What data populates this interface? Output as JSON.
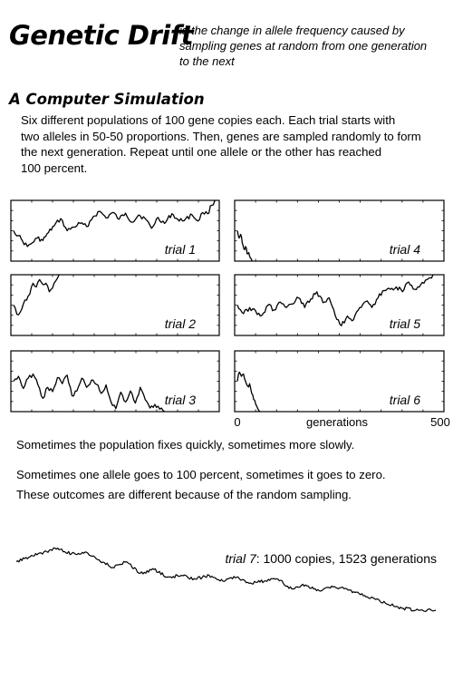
{
  "header": {
    "title": "Genetic Drift",
    "definition_lines": [
      "is the change in allele frequency caused by",
      "sampling genes at random from one generation",
      "to the next"
    ]
  },
  "section": {
    "title": "A Computer Simulation",
    "intro_lines": [
      "Six different populations of 100 gene copies each.  Each trial starts with",
      "two alleles in 50-50 proportions.  Then, genes are sampled randomly to form",
      "the next generation.  Repeat until one allele or the other has reached",
      "100 percent."
    ]
  },
  "axis": {
    "start": "0",
    "label": "generations",
    "end": "500"
  },
  "notes": {
    "line1": "Sometimes the population fixes quickly, sometimes more slowly.",
    "line2": "Sometimes one allele goes to 100 percent, sometimes it goes to zero.",
    "line3": "These outcomes are different because of the random sampling."
  },
  "trial7_caption": {
    "name": "trial 7",
    "rest": ": 1000 copies, 1523 generations"
  },
  "chart_data": [
    {
      "type": "line",
      "title": "trial 1",
      "xlim": [
        0,
        500
      ],
      "ylim": [
        0,
        1
      ],
      "x": [
        0,
        12,
        22,
        34,
        46,
        58,
        72,
        86,
        100,
        116,
        132,
        148,
        164,
        180,
        196,
        212,
        228,
        244,
        260,
        276,
        292,
        308,
        324,
        340,
        356,
        372,
        390,
        408,
        424,
        440,
        454,
        466,
        478,
        488,
        496
      ],
      "y": [
        0.5,
        0.42,
        0.33,
        0.24,
        0.3,
        0.38,
        0.34,
        0.47,
        0.58,
        0.7,
        0.5,
        0.56,
        0.62,
        0.57,
        0.73,
        0.82,
        0.71,
        0.8,
        0.69,
        0.79,
        0.64,
        0.76,
        0.7,
        0.54,
        0.72,
        0.62,
        0.78,
        0.66,
        0.7,
        0.76,
        0.66,
        0.8,
        0.78,
        0.92,
        1.0
      ]
    },
    {
      "type": "line",
      "title": "trial 2",
      "xlim": [
        0,
        500
      ],
      "ylim": [
        0,
        1
      ],
      "x": [
        0,
        8,
        16,
        24,
        32,
        40,
        48,
        56,
        64,
        72,
        80,
        88,
        96,
        104,
        112
      ],
      "y": [
        0.5,
        0.35,
        0.38,
        0.52,
        0.58,
        0.68,
        0.86,
        0.8,
        0.92,
        0.84,
        0.86,
        0.72,
        0.78,
        0.9,
        1.0
      ]
    },
    {
      "type": "line",
      "title": "trial 3",
      "xlim": [
        0,
        500
      ],
      "ylim": [
        0,
        1
      ],
      "x": [
        0,
        12,
        24,
        36,
        48,
        60,
        72,
        84,
        96,
        108,
        120,
        132,
        144,
        156,
        168,
        180,
        192,
        204,
        216,
        228,
        240,
        252,
        264,
        276,
        288,
        300,
        312,
        324,
        336,
        348,
        360,
        372
      ],
      "y": [
        0.5,
        0.58,
        0.38,
        0.55,
        0.62,
        0.44,
        0.22,
        0.4,
        0.33,
        0.56,
        0.46,
        0.6,
        0.26,
        0.34,
        0.55,
        0.4,
        0.52,
        0.45,
        0.3,
        0.44,
        0.16,
        0.05,
        0.32,
        0.16,
        0.34,
        0.14,
        0.4,
        0.2,
        0.06,
        0.12,
        0.04,
        0.0
      ]
    },
    {
      "type": "line",
      "title": "trial 4",
      "xlim": [
        0,
        500
      ],
      "ylim": [
        0,
        1
      ],
      "x": [
        0,
        4,
        8,
        12,
        16,
        20,
        24,
        28,
        32,
        36
      ],
      "y": [
        0.5,
        0.38,
        0.44,
        0.3,
        0.2,
        0.24,
        0.12,
        0.14,
        0.05,
        0.0
      ]
    },
    {
      "type": "line",
      "title": "trial 5",
      "xlim": [
        0,
        500
      ],
      "ylim": [
        0,
        1
      ],
      "x": [
        0,
        15,
        30,
        45,
        60,
        75,
        90,
        105,
        120,
        135,
        150,
        165,
        180,
        195,
        210,
        225,
        240,
        255,
        270,
        285,
        300,
        315,
        330,
        345,
        360,
        375,
        390,
        405,
        420,
        435,
        450,
        465,
        480
      ],
      "y": [
        0.5,
        0.36,
        0.46,
        0.4,
        0.33,
        0.5,
        0.42,
        0.55,
        0.46,
        0.52,
        0.62,
        0.46,
        0.6,
        0.72,
        0.54,
        0.62,
        0.33,
        0.16,
        0.32,
        0.26,
        0.46,
        0.56,
        0.46,
        0.62,
        0.74,
        0.76,
        0.8,
        0.72,
        0.88,
        0.76,
        0.84,
        0.92,
        1.0
      ]
    },
    {
      "type": "line",
      "title": "trial 6",
      "xlim": [
        0,
        500
      ],
      "ylim": [
        0,
        1
      ],
      "x": [
        0,
        5,
        10,
        15,
        20,
        25,
        30,
        35,
        40,
        45,
        50,
        55
      ],
      "y": [
        0.5,
        0.65,
        0.58,
        0.62,
        0.5,
        0.42,
        0.46,
        0.3,
        0.2,
        0.12,
        0.05,
        0.0
      ]
    },
    {
      "type": "line",
      "title": "trial 7: 1000 copies, 1523 generations",
      "xlim": [
        0,
        1523
      ],
      "ylim": [
        0,
        1
      ],
      "x": [
        0,
        50,
        100,
        150,
        200,
        250,
        300,
        350,
        400,
        450,
        500,
        550,
        600,
        650,
        700,
        750,
        800,
        850,
        900,
        950,
        1000,
        1050,
        1100,
        1150,
        1200,
        1250,
        1300,
        1350,
        1400,
        1450,
        1523
      ],
      "y": [
        0.5,
        0.55,
        0.6,
        0.64,
        0.58,
        0.6,
        0.52,
        0.44,
        0.5,
        0.38,
        0.42,
        0.34,
        0.36,
        0.32,
        0.36,
        0.3,
        0.34,
        0.28,
        0.3,
        0.32,
        0.22,
        0.26,
        0.2,
        0.24,
        0.22,
        0.16,
        0.12,
        0.06,
        0.02,
        0.0,
        0.0
      ]
    }
  ]
}
